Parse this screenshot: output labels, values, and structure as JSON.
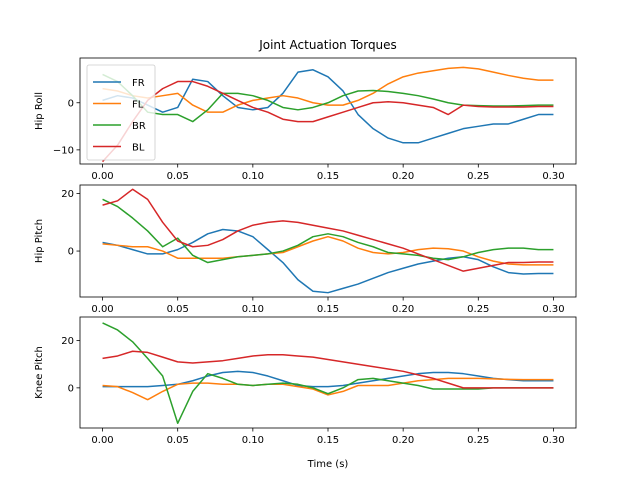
{
  "chart_data": {
    "type": "line",
    "title": "Joint Actuation Torques",
    "xlabel": "Time (s)",
    "x": [
      0.0,
      0.01,
      0.02,
      0.03,
      0.04,
      0.05,
      0.06,
      0.07,
      0.08,
      0.09,
      0.1,
      0.11,
      0.12,
      0.13,
      0.14,
      0.15,
      0.16,
      0.17,
      0.18,
      0.19,
      0.2,
      0.21,
      0.22,
      0.23,
      0.24,
      0.25,
      0.26,
      0.27,
      0.28,
      0.29,
      0.3
    ],
    "xlim": [
      -0.015,
      0.315
    ],
    "xticks": [
      "0.00",
      "0.05",
      "0.10",
      "0.15",
      "0.20",
      "0.25",
      "0.30"
    ],
    "colors": {
      "FR": "#1f77b4",
      "FL": "#ff7f0e",
      "BR": "#2ca02c",
      "BL": "#d62728"
    },
    "legend": {
      "location": "lower-left",
      "entries": [
        "FR",
        "FL",
        "BR",
        "BL"
      ]
    },
    "grid": false,
    "subplots": [
      {
        "ylabel": "Hip Roll",
        "ylim": [
          -13,
          9.5
        ],
        "yticks": [
          -10,
          0
        ],
        "series": [
          {
            "name": "FR",
            "values": [
              0.5,
              1.5,
              1.0,
              -0.5,
              -2.0,
              -1.0,
              5.0,
              4.5,
              1.5,
              -1.0,
              -1.5,
              -1.0,
              2.0,
              6.5,
              7.0,
              5.5,
              2.5,
              -2.5,
              -5.5,
              -7.5,
              -8.5,
              -8.5,
              -7.5,
              -6.5,
              -5.5,
              -5.0,
              -4.5,
              -4.5,
              -3.5,
              -2.5,
              -2.5
            ]
          },
          {
            "name": "FL",
            "values": [
              3.0,
              2.5,
              1.5,
              1.0,
              1.5,
              2.0,
              -0.5,
              -2.0,
              -2.0,
              -0.5,
              0.5,
              1.0,
              1.5,
              1.0,
              0.0,
              -0.5,
              -0.5,
              0.5,
              2.0,
              4.0,
              5.5,
              6.3,
              6.8,
              7.3,
              7.5,
              7.2,
              6.5,
              5.8,
              5.2,
              4.8,
              4.8
            ]
          },
          {
            "name": "BR",
            "values": [
              6.0,
              4.5,
              1.5,
              -2.0,
              -2.5,
              -2.5,
              -4.0,
              -1.5,
              2.0,
              2.0,
              1.5,
              0.5,
              -1.0,
              -1.5,
              -1.0,
              0.0,
              1.5,
              2.5,
              2.6,
              2.4,
              2.0,
              1.5,
              0.8,
              0.0,
              -0.5,
              -0.6,
              -0.7,
              -0.7,
              -0.6,
              -0.5,
              -0.5
            ]
          },
          {
            "name": "BL",
            "values": [
              -12.5,
              -9.0,
              -4.0,
              0.5,
              3.0,
              4.5,
              4.5,
              3.5,
              2.0,
              0.5,
              -1.0,
              -2.0,
              -3.5,
              -4.0,
              -4.0,
              -3.0,
              -2.0,
              -1.0,
              0.0,
              0.2,
              0.0,
              -0.5,
              -1.0,
              -2.5,
              -0.5,
              -0.8,
              -0.9,
              -0.9,
              -0.9,
              -0.8,
              -0.8
            ]
          }
        ]
      },
      {
        "ylabel": "Hip Pitch",
        "ylim": [
          -16,
          23
        ],
        "yticks": [
          0,
          20
        ],
        "series": [
          {
            "name": "FR",
            "values": [
              3.0,
              2.0,
              0.5,
              -1.0,
              -1.0,
              0.5,
              3.0,
              6.0,
              7.5,
              7.0,
              5.0,
              0.5,
              -4.0,
              -10.0,
              -14.0,
              -14.5,
              -13.0,
              -11.5,
              -9.5,
              -7.5,
              -6.0,
              -4.5,
              -3.5,
              -2.5,
              -2.0,
              -3.0,
              -5.5,
              -7.5,
              -8.0,
              -7.8,
              -7.8
            ]
          },
          {
            "name": "FL",
            "values": [
              2.5,
              2.0,
              1.5,
              1.5,
              0.0,
              -2.5,
              -2.5,
              -2.5,
              -2.5,
              -2.0,
              -1.5,
              -1.0,
              -0.5,
              1.5,
              3.5,
              5.0,
              3.5,
              1.0,
              -0.5,
              -1.0,
              -0.5,
              0.5,
              1.0,
              0.8,
              0.0,
              -2.0,
              -3.5,
              -4.5,
              -4.8,
              -4.8,
              -4.8
            ]
          },
          {
            "name": "BR",
            "values": [
              18.0,
              15.5,
              11.5,
              7.0,
              1.5,
              4.5,
              -1.5,
              -4.0,
              -3.0,
              -2.0,
              -1.5,
              -1.0,
              0.0,
              2.0,
              5.0,
              6.0,
              5.0,
              3.0,
              1.5,
              -0.5,
              -1.0,
              -1.5,
              -2.5,
              -3.0,
              -2.0,
              -0.5,
              0.5,
              1.0,
              1.0,
              0.5,
              0.5
            ]
          },
          {
            "name": "BL",
            "values": [
              16.0,
              17.5,
              21.5,
              18.0,
              10.0,
              3.5,
              1.5,
              2.0,
              4.0,
              7.0,
              9.0,
              10.0,
              10.5,
              10.0,
              9.0,
              8.0,
              7.0,
              5.5,
              4.0,
              2.5,
              1.0,
              -1.0,
              -3.0,
              -5.0,
              -7.0,
              -6.0,
              -5.0,
              -4.0,
              -4.0,
              -3.8,
              -3.8
            ]
          }
        ]
      },
      {
        "ylabel": "Knee Pitch",
        "ylim": [
          -17,
          30
        ],
        "yticks": [
          0,
          20
        ],
        "series": [
          {
            "name": "FR",
            "values": [
              0.5,
              0.5,
              0.5,
              0.5,
              1.0,
              1.5,
              3.0,
              5.0,
              6.5,
              7.0,
              6.5,
              5.0,
              3.0,
              1.0,
              0.5,
              0.5,
              1.0,
              2.0,
              3.0,
              4.0,
              5.0,
              6.0,
              6.5,
              6.5,
              6.0,
              5.0,
              4.0,
              3.5,
              3.0,
              3.0,
              3.0
            ]
          },
          {
            "name": "FL",
            "values": [
              1.0,
              0.5,
              -2.0,
              -5.0,
              -1.5,
              1.5,
              2.0,
              2.0,
              1.5,
              1.5,
              1.0,
              1.5,
              1.5,
              0.5,
              -0.5,
              -3.0,
              -1.5,
              1.0,
              1.0,
              1.0,
              2.0,
              3.0,
              3.5,
              4.0,
              4.0,
              4.0,
              3.8,
              3.6,
              3.5,
              3.5,
              3.5
            ]
          },
          {
            "name": "BR",
            "values": [
              27.5,
              24.5,
              19.5,
              12.5,
              5.0,
              -15.0,
              -1.5,
              6.0,
              4.0,
              1.5,
              1.0,
              1.5,
              2.0,
              1.5,
              0.0,
              -2.5,
              0.0,
              3.5,
              4.0,
              3.0,
              2.0,
              1.0,
              -0.5,
              -0.5,
              -0.5,
              -0.5,
              0.0,
              0.0,
              0.0,
              0.0,
              0.0
            ]
          },
          {
            "name": "BL",
            "values": [
              12.5,
              13.5,
              15.5,
              15.0,
              13.0,
              11.0,
              10.5,
              11.0,
              11.5,
              12.5,
              13.5,
              14.0,
              14.0,
              13.5,
              13.0,
              12.0,
              11.0,
              10.0,
              9.0,
              8.0,
              7.0,
              5.5,
              4.0,
              2.0,
              0.0,
              0.0,
              0.0,
              0.0,
              0.0,
              0.0,
              0.0
            ]
          }
        ]
      }
    ]
  }
}
